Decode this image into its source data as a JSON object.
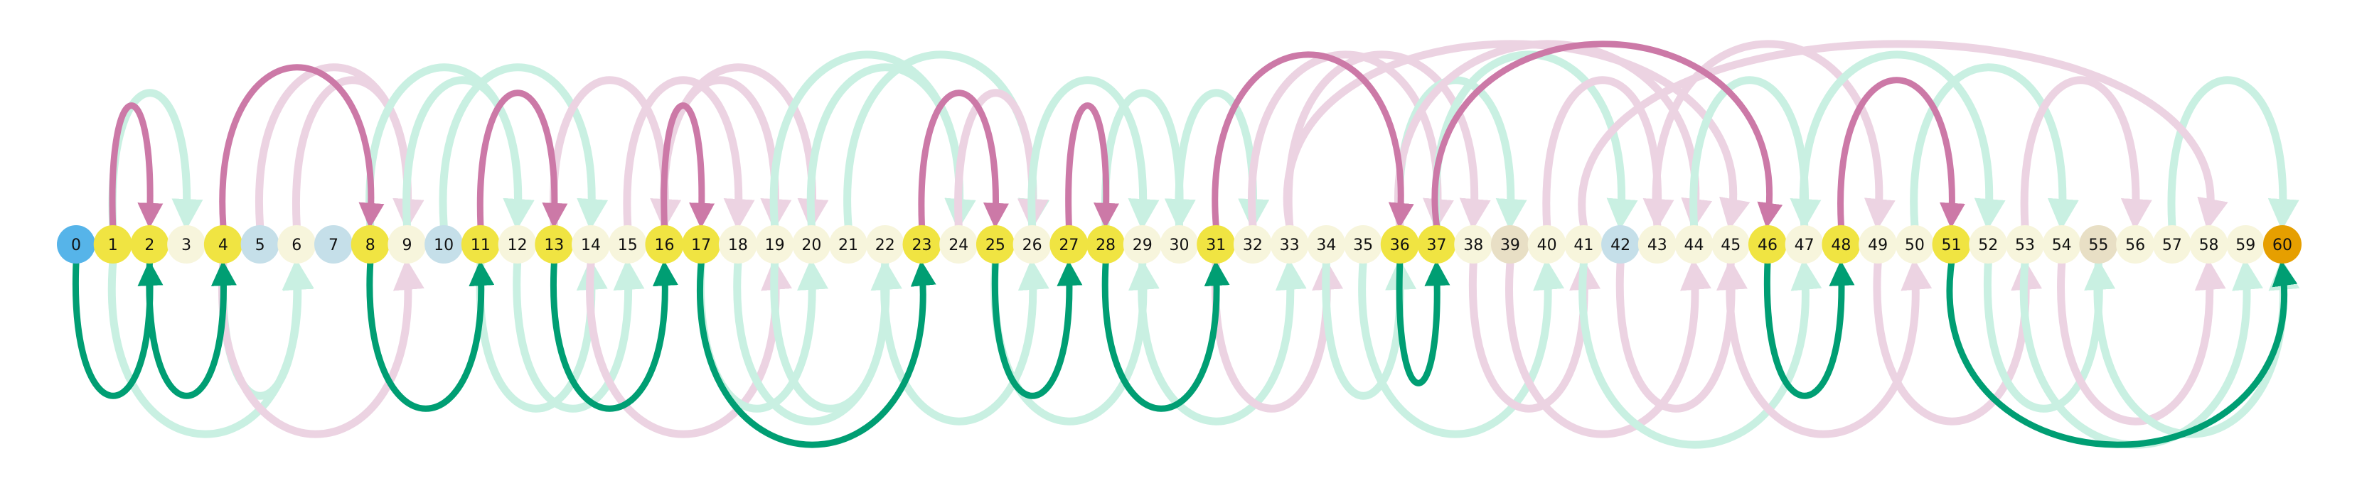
{
  "diagram": {
    "colors": {
      "highlight_node": "#f0e442",
      "visited_node": "#f7f5dc",
      "start_node": "#56b4e9",
      "goal_node": "#e69f00",
      "blue_light_node": "#c5dfe9",
      "tan_light_node": "#e8dfc5",
      "pink_path": "#cc79a7",
      "pink_faint": "#ecd3e2",
      "green_path": "#009e73",
      "green_faint": "#c9f0e2"
    },
    "nodes": [
      {
        "label": "0",
        "type": "start"
      },
      {
        "label": "1",
        "type": "highlight"
      },
      {
        "label": "2",
        "type": "highlight"
      },
      {
        "label": "3",
        "type": "visited"
      },
      {
        "label": "4",
        "type": "highlight"
      },
      {
        "label": "5",
        "type": "blue_light"
      },
      {
        "label": "6",
        "type": "visited"
      },
      {
        "label": "7",
        "type": "blue_light"
      },
      {
        "label": "8",
        "type": "highlight"
      },
      {
        "label": "9",
        "type": "visited"
      },
      {
        "label": "10",
        "type": "blue_light"
      },
      {
        "label": "11",
        "type": "highlight"
      },
      {
        "label": "12",
        "type": "visited"
      },
      {
        "label": "13",
        "type": "highlight"
      },
      {
        "label": "14",
        "type": "visited"
      },
      {
        "label": "15",
        "type": "visited"
      },
      {
        "label": "16",
        "type": "highlight"
      },
      {
        "label": "17",
        "type": "highlight"
      },
      {
        "label": "18",
        "type": "visited"
      },
      {
        "label": "19",
        "type": "visited"
      },
      {
        "label": "20",
        "type": "visited"
      },
      {
        "label": "21",
        "type": "visited"
      },
      {
        "label": "22",
        "type": "visited"
      },
      {
        "label": "23",
        "type": "highlight"
      },
      {
        "label": "24",
        "type": "visited"
      },
      {
        "label": "25",
        "type": "highlight"
      },
      {
        "label": "26",
        "type": "visited"
      },
      {
        "label": "27",
        "type": "highlight"
      },
      {
        "label": "28",
        "type": "highlight"
      },
      {
        "label": "29",
        "type": "visited"
      },
      {
        "label": "30",
        "type": "visited"
      },
      {
        "label": "31",
        "type": "highlight"
      },
      {
        "label": "32",
        "type": "visited"
      },
      {
        "label": "33",
        "type": "visited"
      },
      {
        "label": "34",
        "type": "visited"
      },
      {
        "label": "35",
        "type": "visited"
      },
      {
        "label": "36",
        "type": "highlight"
      },
      {
        "label": "37",
        "type": "highlight"
      },
      {
        "label": "38",
        "type": "visited"
      },
      {
        "label": "39",
        "type": "tan_light"
      },
      {
        "label": "40",
        "type": "visited"
      },
      {
        "label": "41",
        "type": "visited"
      },
      {
        "label": "42",
        "type": "blue_light"
      },
      {
        "label": "43",
        "type": "visited"
      },
      {
        "label": "44",
        "type": "visited"
      },
      {
        "label": "45",
        "type": "visited"
      },
      {
        "label": "46",
        "type": "highlight"
      },
      {
        "label": "47",
        "type": "visited"
      },
      {
        "label": "48",
        "type": "highlight"
      },
      {
        "label": "49",
        "type": "visited"
      },
      {
        "label": "50",
        "type": "visited"
      },
      {
        "label": "51",
        "type": "highlight"
      },
      {
        "label": "52",
        "type": "visited"
      },
      {
        "label": "53",
        "type": "visited"
      },
      {
        "label": "54",
        "type": "visited"
      },
      {
        "label": "55",
        "type": "tan_light"
      },
      {
        "label": "56",
        "type": "visited"
      },
      {
        "label": "57",
        "type": "visited"
      },
      {
        "label": "58",
        "type": "visited"
      },
      {
        "label": "59",
        "type": "visited"
      },
      {
        "label": "60",
        "type": "goal"
      }
    ],
    "path_arcs": [
      {
        "from": "0",
        "to": "2",
        "side": "below",
        "color": "green_path"
      },
      {
        "from": "1",
        "to": "2",
        "side": "above",
        "color": "pink_path"
      },
      {
        "from": "2",
        "to": "4",
        "side": "below",
        "color": "green_path"
      },
      {
        "from": "4",
        "to": "8",
        "side": "above",
        "color": "pink_path"
      },
      {
        "from": "8",
        "to": "11",
        "side": "below",
        "color": "green_path"
      },
      {
        "from": "11",
        "to": "13",
        "side": "above",
        "color": "pink_path"
      },
      {
        "from": "13",
        "to": "16",
        "side": "below",
        "color": "green_path"
      },
      {
        "from": "16",
        "to": "17",
        "side": "above",
        "color": "pink_path"
      },
      {
        "from": "17",
        "to": "23",
        "side": "below",
        "color": "green_path"
      },
      {
        "from": "23",
        "to": "25",
        "side": "above",
        "color": "pink_path"
      },
      {
        "from": "25",
        "to": "27",
        "side": "below",
        "color": "green_path"
      },
      {
        "from": "27",
        "to": "28",
        "side": "above",
        "color": "pink_path"
      },
      {
        "from": "28",
        "to": "31",
        "side": "below",
        "color": "green_path"
      },
      {
        "from": "31",
        "to": "36",
        "side": "above",
        "color": "pink_path"
      },
      {
        "from": "36",
        "to": "37",
        "side": "below",
        "color": "green_path"
      },
      {
        "from": "37",
        "to": "46",
        "side": "above",
        "color": "pink_path"
      },
      {
        "from": "46",
        "to": "48",
        "side": "below",
        "color": "green_path"
      },
      {
        "from": "48",
        "to": "51",
        "side": "above",
        "color": "pink_path"
      },
      {
        "from": "51",
        "to": "60",
        "side": "below",
        "color": "green_path"
      }
    ],
    "faint_arcs": [
      {
        "from": "1",
        "to": "3",
        "side": "above",
        "color": "green_faint"
      },
      {
        "from": "1",
        "to": "6",
        "side": "below",
        "color": "green_faint"
      },
      {
        "from": "4",
        "to": "6",
        "side": "below",
        "color": "green_faint"
      },
      {
        "from": "4",
        "to": "9",
        "side": "below",
        "color": "pink_faint"
      },
      {
        "from": "6",
        "to": "9",
        "side": "above",
        "color": "pink_faint"
      },
      {
        "from": "5",
        "to": "9",
        "side": "above",
        "color": "pink_faint"
      },
      {
        "from": "9",
        "to": "12",
        "side": "above",
        "color": "green_faint"
      },
      {
        "from": "8",
        "to": "12",
        "side": "above",
        "color": "green_faint"
      },
      {
        "from": "10",
        "to": "14",
        "side": "above",
        "color": "green_faint"
      },
      {
        "from": "11",
        "to": "14",
        "side": "below",
        "color": "green_faint"
      },
      {
        "from": "12",
        "to": "15",
        "side": "below",
        "color": "green_faint"
      },
      {
        "from": "13",
        "to": "16",
        "side": "above",
        "color": "pink_faint"
      },
      {
        "from": "14",
        "to": "19",
        "side": "below",
        "color": "pink_faint"
      },
      {
        "from": "16",
        "to": "19",
        "side": "above",
        "color": "pink_faint"
      },
      {
        "from": "15",
        "to": "18",
        "side": "above",
        "color": "pink_faint"
      },
      {
        "from": "16",
        "to": "20",
        "side": "above",
        "color": "pink_faint"
      },
      {
        "from": "17",
        "to": "20",
        "side": "below",
        "color": "green_faint"
      },
      {
        "from": "18",
        "to": "22",
        "side": "below",
        "color": "green_faint"
      },
      {
        "from": "19",
        "to": "24",
        "side": "above",
        "color": "green_faint"
      },
      {
        "from": "20",
        "to": "24",
        "side": "above",
        "color": "green_faint"
      },
      {
        "from": "19",
        "to": "22",
        "side": "below",
        "color": "green_faint"
      },
      {
        "from": "21",
        "to": "26",
        "side": "above",
        "color": "green_faint"
      },
      {
        "from": "22",
        "to": "26",
        "side": "below",
        "color": "green_faint"
      },
      {
        "from": "24",
        "to": "26",
        "side": "above",
        "color": "pink_faint"
      },
      {
        "from": "25",
        "to": "29",
        "side": "below",
        "color": "green_faint"
      },
      {
        "from": "26",
        "to": "29",
        "side": "above",
        "color": "green_faint"
      },
      {
        "from": "28",
        "to": "30",
        "side": "above",
        "color": "green_faint"
      },
      {
        "from": "29",
        "to": "33",
        "side": "below",
        "color": "green_faint"
      },
      {
        "from": "30",
        "to": "32",
        "side": "above",
        "color": "green_faint"
      },
      {
        "from": "31",
        "to": "34",
        "side": "below",
        "color": "pink_faint"
      },
      {
        "from": "32",
        "to": "37",
        "side": "above",
        "color": "pink_faint"
      },
      {
        "from": "33",
        "to": "38",
        "side": "above",
        "color": "pink_faint"
      },
      {
        "from": "34",
        "to": "36",
        "side": "below",
        "color": "green_faint"
      },
      {
        "from": "35",
        "to": "40",
        "side": "below",
        "color": "green_faint"
      },
      {
        "from": "36",
        "to": "39",
        "side": "above",
        "color": "green_faint"
      },
      {
        "from": "37",
        "to": "42",
        "side": "above",
        "color": "green_faint"
      },
      {
        "from": "38",
        "to": "41",
        "side": "below",
        "color": "pink_faint"
      },
      {
        "from": "39",
        "to": "44",
        "side": "below",
        "color": "pink_faint"
      },
      {
        "from": "36",
        "to": "44",
        "side": "above",
        "color": "pink_faint"
      },
      {
        "from": "33",
        "to": "45",
        "side": "above",
        "color": "pink_faint"
      },
      {
        "from": "40",
        "to": "43",
        "side": "above",
        "color": "pink_faint"
      },
      {
        "from": "41",
        "to": "47",
        "side": "below",
        "color": "green_faint"
      },
      {
        "from": "42",
        "to": "45",
        "side": "below",
        "color": "pink_faint"
      },
      {
        "from": "43",
        "to": "49",
        "side": "above",
        "color": "pink_faint"
      },
      {
        "from": "44",
        "to": "47",
        "side": "above",
        "color": "green_faint"
      },
      {
        "from": "45",
        "to": "50",
        "side": "below",
        "color": "pink_faint"
      },
      {
        "from": "47",
        "to": "52",
        "side": "above",
        "color": "green_faint"
      },
      {
        "from": "49",
        "to": "53",
        "side": "below",
        "color": "pink_faint"
      },
      {
        "from": "50",
        "to": "54",
        "side": "above",
        "color": "green_faint"
      },
      {
        "from": "52",
        "to": "55",
        "side": "below",
        "color": "green_faint"
      },
      {
        "from": "53",
        "to": "56",
        "side": "above",
        "color": "pink_faint"
      },
      {
        "from": "54",
        "to": "58",
        "side": "below",
        "color": "pink_faint"
      },
      {
        "from": "55",
        "to": "60",
        "side": "below",
        "color": "green_faint"
      },
      {
        "from": "57",
        "to": "60",
        "side": "above",
        "color": "green_faint"
      },
      {
        "from": "53",
        "to": "59",
        "side": "below",
        "color": "green_faint"
      },
      {
        "from": "41",
        "to": "58",
        "side": "above",
        "color": "pink_faint"
      }
    ]
  }
}
